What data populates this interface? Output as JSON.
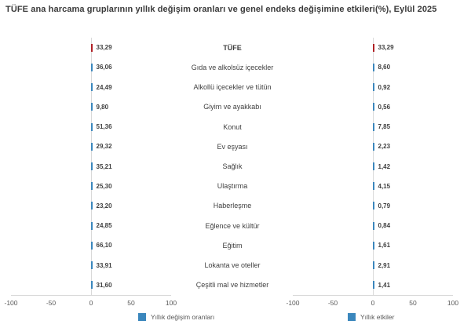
{
  "title": "TÜFE ana harcama gruplarının yıllık değişim oranları ve genel endeks değişimine etkileri(%), Eylül 2025",
  "colors": {
    "bar_blue": "#3b87bd",
    "bar_red": "#b02025",
    "axis_line": "#d9d9d9",
    "label_text": "#3f3f3f",
    "tick_text": "#595959"
  },
  "axis": {
    "min": -100,
    "max": 100,
    "ticks": [
      -100,
      -50,
      0,
      50,
      100
    ]
  },
  "legend": {
    "left_label": "Yıllık değişim oranları",
    "right_label": "Yıllık etkiler"
  },
  "chart_data": {
    "type": "bar",
    "orientation": "horizontal",
    "title": "TÜFE ana harcama gruplarının yıllık değişim oranları ve genel endeks değişimine etkileri(%), Eylül 2025",
    "xlim": [
      -100,
      100
    ],
    "highlight_index": 0,
    "categories": [
      "TÜFE",
      "Gıda ve alkolsüz içecekler",
      "Alkollü içecekler ve tütün",
      "Giyim ve ayakkabı",
      "Konut",
      "Ev eşyası",
      "Sağlık",
      "Ulaştırma",
      "Haberleşme",
      "Eğlence ve kültür",
      "Eğitim",
      "Lokanta ve oteller",
      "Çeşitli mal ve hizmetler"
    ],
    "series": [
      {
        "name": "Yıllık değişim oranları",
        "values": [
          33.29,
          36.06,
          24.49,
          9.8,
          51.36,
          29.32,
          35.21,
          25.3,
          23.2,
          24.85,
          66.1,
          33.91,
          31.6
        ],
        "labels": [
          "33,29",
          "36,06",
          "24,49",
          "9,80",
          "51,36",
          "29,32",
          "35,21",
          "25,30",
          "23,20",
          "24,85",
          "66,10",
          "33,91",
          "31,60"
        ]
      },
      {
        "name": "Yıllık etkiler",
        "values": [
          33.29,
          8.6,
          0.92,
          0.56,
          7.85,
          2.23,
          1.42,
          4.15,
          0.79,
          0.84,
          1.61,
          2.91,
          1.41
        ],
        "labels": [
          "33,29",
          "8,60",
          "0,92",
          "0,56",
          "7,85",
          "2,23",
          "1,42",
          "4,15",
          "0,79",
          "0,84",
          "1,61",
          "2,91",
          "1,41"
        ]
      }
    ]
  }
}
